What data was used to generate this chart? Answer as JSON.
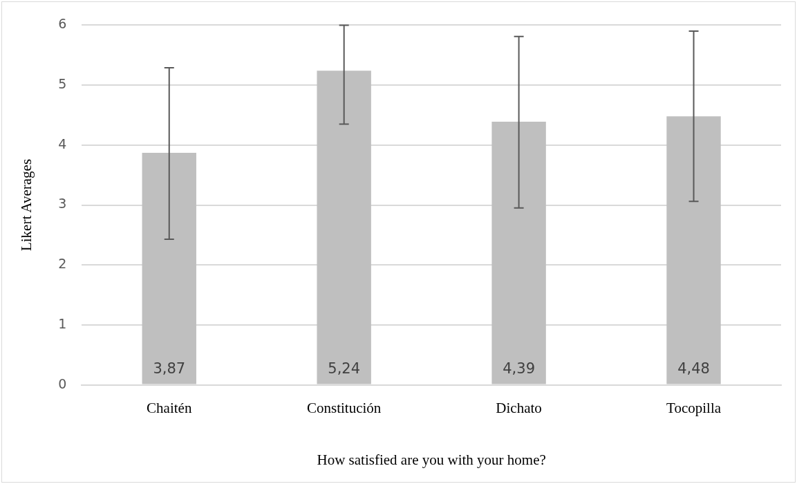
{
  "chart_data": {
    "type": "bar",
    "xlabel": "How satisfied are you with your home?",
    "ylabel": "Likert Averages",
    "categories": [
      "Chaitén",
      "Constitución",
      "Dichato",
      "Tocopilla"
    ],
    "values": [
      3.87,
      5.24,
      4.39,
      4.48
    ],
    "value_labels": [
      "3,87",
      "5,24",
      "4,39",
      "4,48"
    ],
    "errors": [
      [
        2.43,
        5.29
      ],
      [
        4.35,
        6
      ],
      [
        2.95,
        5.81
      ],
      [
        3.06,
        5.9
      ]
    ],
    "color": "#bfbfbf",
    "ylim": [
      0,
      6
    ],
    "yticks": [
      0,
      1,
      2,
      3,
      4,
      5,
      6
    ],
    "grid": "y",
    "legend": false
  }
}
